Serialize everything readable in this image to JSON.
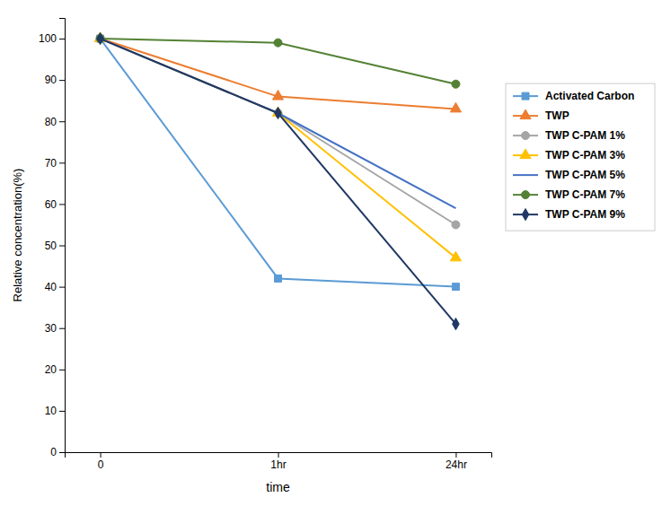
{
  "chart_data": {
    "type": "line",
    "x_label": "time",
    "y_label": "Relative concentration(%)",
    "categories": [
      "0",
      "1hr",
      "24hr"
    ],
    "series": [
      {
        "name": "Activated Carbon",
        "color": "#5B9BD5",
        "marker": "square",
        "values": [
          100,
          42,
          40
        ]
      },
      {
        "name": "TWP",
        "color": "#ED7D31",
        "marker": "triangle",
        "values": [
          100,
          86,
          83
        ]
      },
      {
        "name": "TWP C-PAM 1%",
        "color": "#A5A5A5",
        "marker": "circle",
        "values": [
          100,
          82,
          55
        ]
      },
      {
        "name": "TWP C-PAM 3%",
        "color": "#FFC000",
        "marker": "triangle",
        "values": [
          100,
          82,
          47
        ]
      },
      {
        "name": "TWP C-PAM 5%",
        "color": "#4472C4",
        "marker": "none",
        "values": [
          100,
          82,
          59
        ]
      },
      {
        "name": "TWP C-PAM 7%",
        "color": "#548235",
        "marker": "circle",
        "values": [
          100,
          99,
          89
        ]
      },
      {
        "name": "TWP C-PAM 9%",
        "color": "#203864",
        "marker": "diamond",
        "values": [
          100,
          82,
          31
        ]
      }
    ],
    "ylim": [
      0,
      105
    ],
    "yticks": [
      0,
      10,
      20,
      30,
      40,
      50,
      60,
      70,
      80,
      90,
      100
    ],
    "grid": false,
    "legend": "right"
  }
}
